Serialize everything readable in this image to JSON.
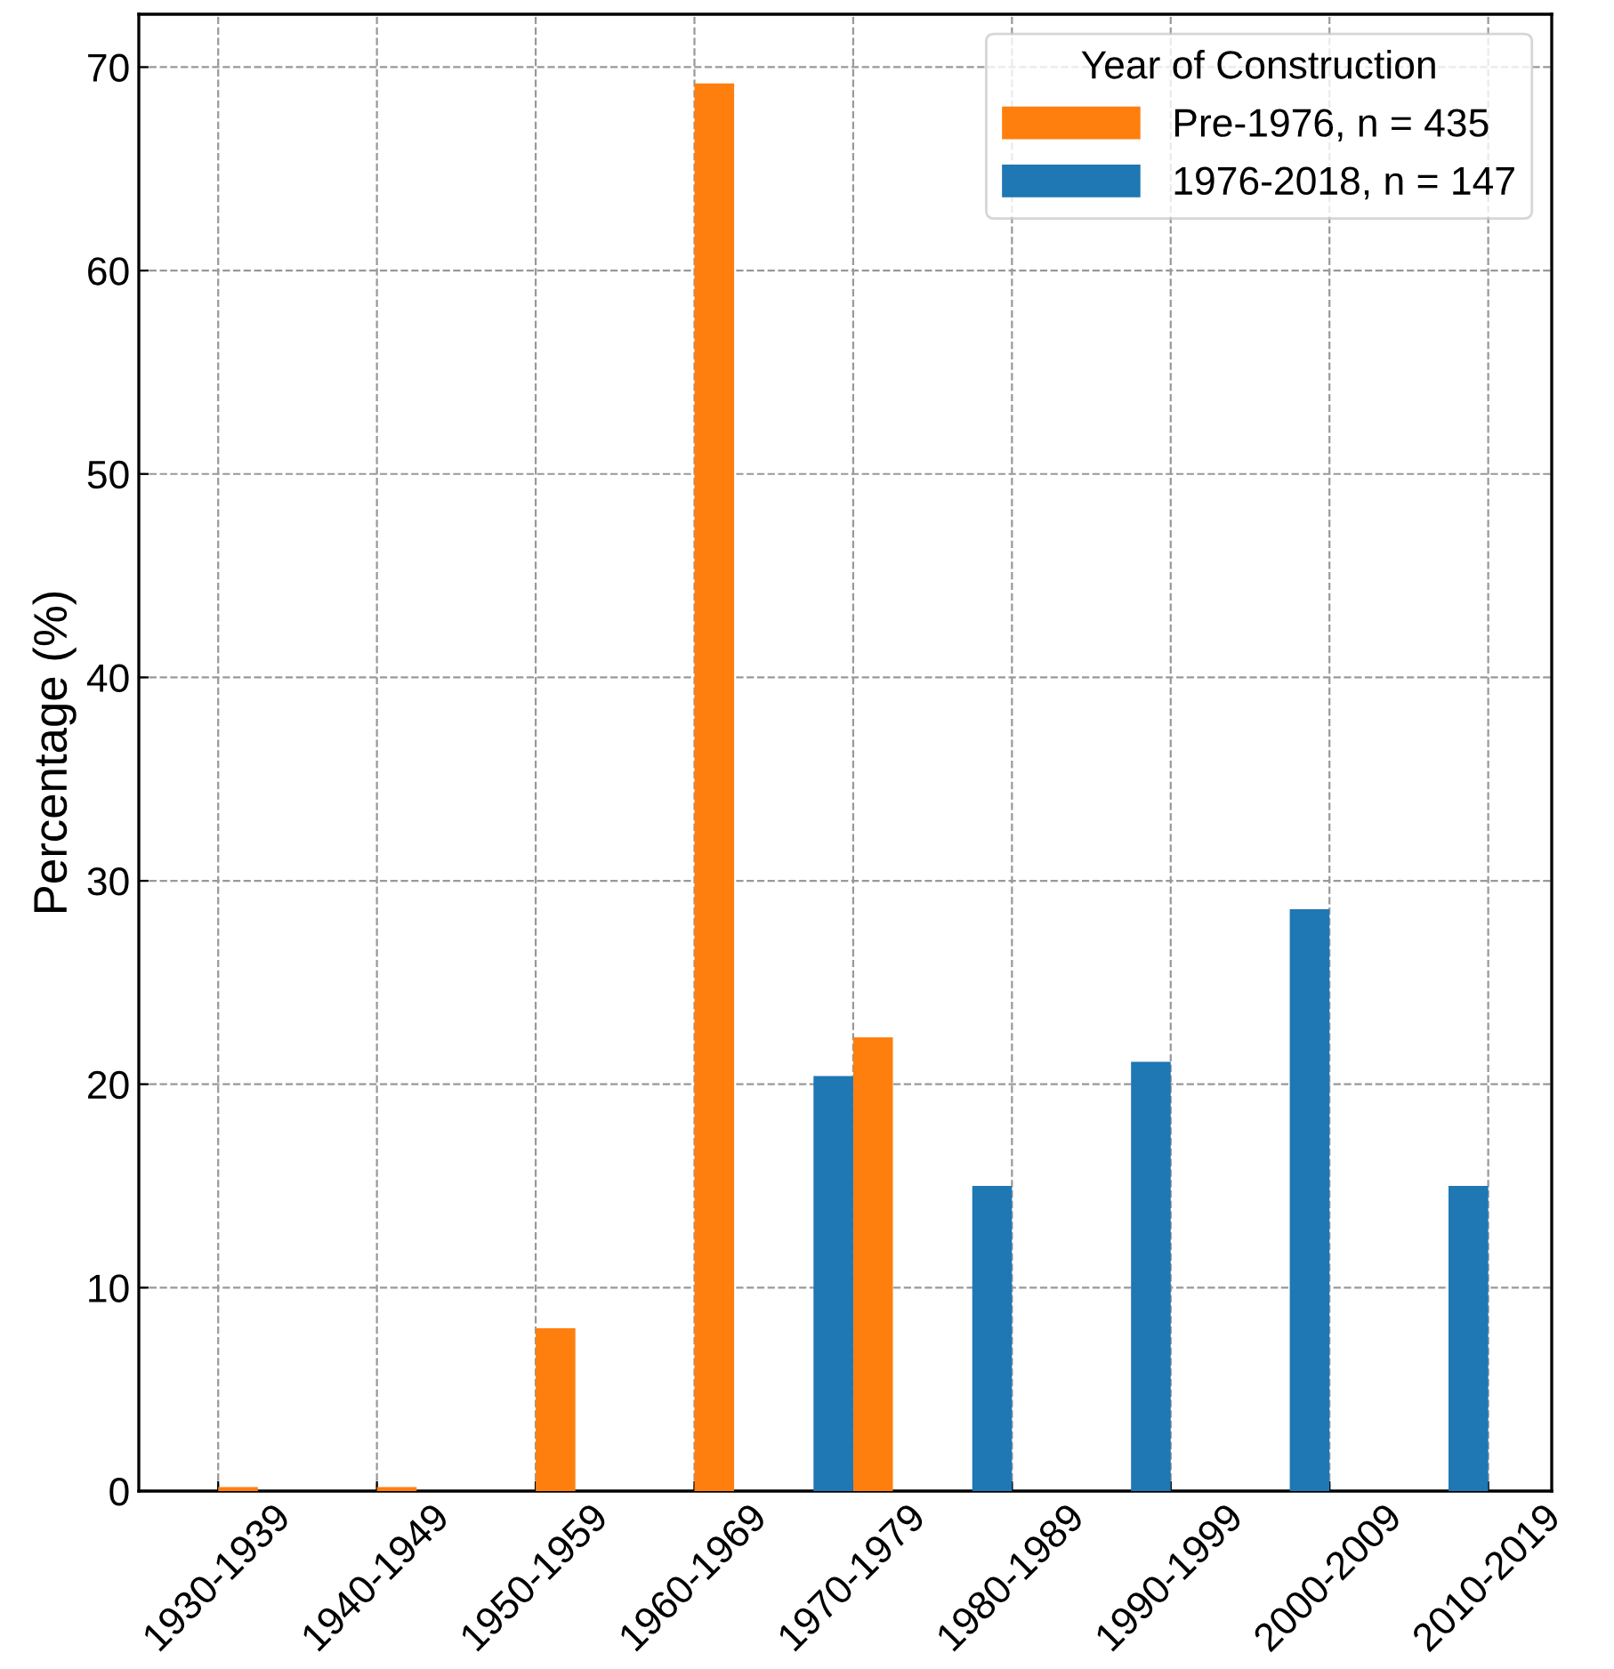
{
  "chart_data": {
    "type": "bar",
    "ylabel": "Percentage (%)",
    "legend_title": "Year of Construction",
    "categories": [
      "1930-1939",
      "1940-1949",
      "1950-1959",
      "1960-1969",
      "1970-1979",
      "1980-1989",
      "1990-1999",
      "2000-2009",
      "2010-2019"
    ],
    "series": [
      {
        "name": "Pre-1976, n = 435",
        "color": "#ff7f0e",
        "values": [
          0.2,
          0.2,
          8.0,
          69.2,
          22.3,
          null,
          null,
          null,
          null
        ]
      },
      {
        "name": "1976-2018, n = 147",
        "color": "#1f77b4",
        "values": [
          null,
          null,
          null,
          null,
          20.4,
          15.0,
          21.1,
          28.6,
          15.0
        ]
      }
    ],
    "ylim": [
      0,
      72.6
    ],
    "yticks": [
      0,
      10,
      20,
      30,
      40,
      50,
      60,
      70
    ],
    "grid": true,
    "legend": "top right"
  }
}
